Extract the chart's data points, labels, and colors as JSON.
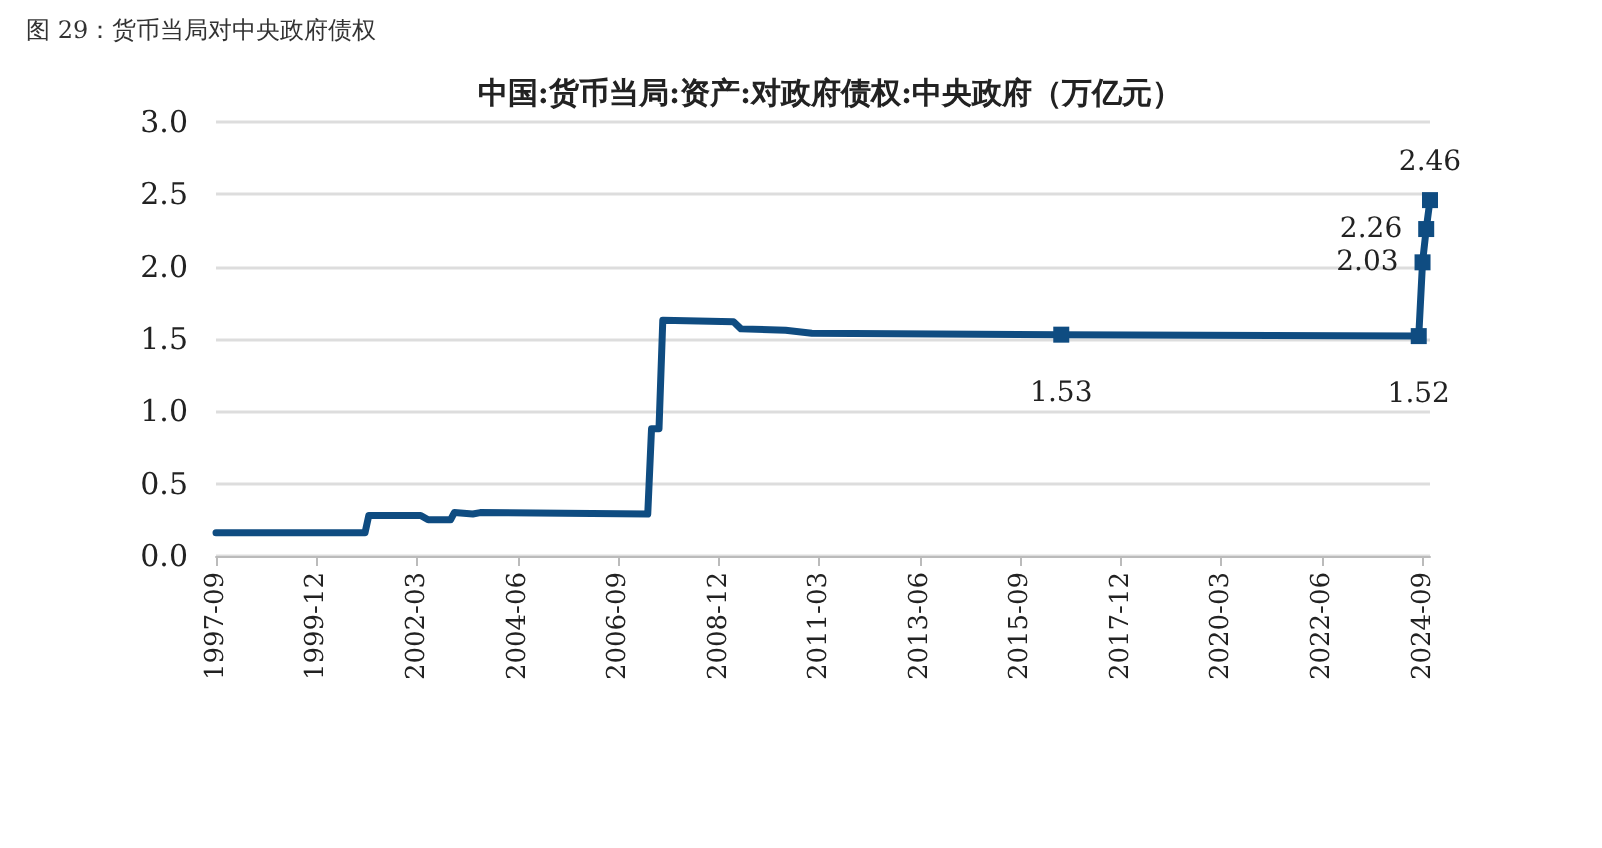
{
  "chart_data": {
    "type": "line",
    "title": "图 29：货币当局对中央政府债权",
    "subtitle": "中国:货币当局:资产:对政府债权:中央政府（万亿元）",
    "xlim": [
      "1997-09",
      "2024-11"
    ],
    "xticks": [
      "1997-09",
      "1999-12",
      "2002-03",
      "2004-06",
      "2006-09",
      "2008-12",
      "2011-03",
      "2013-06",
      "2015-09",
      "2017-12",
      "2020-03",
      "2022-06",
      "2024-09"
    ],
    "ylim": [
      0,
      3
    ],
    "yticks": [
      {
        "value": 0,
        "label": "0.0"
      },
      {
        "value": 0.5,
        "label": "0.5"
      },
      {
        "value": 1,
        "label": "1.0"
      },
      {
        "value": 1.5,
        "label": "1.5"
      },
      {
        "value": 2,
        "label": "2.0"
      },
      {
        "value": 2.5,
        "label": "2.5"
      },
      {
        "value": 3,
        "label": "3.0"
      }
    ],
    "grid": "y",
    "line_style": "solid",
    "series": [
      {
        "color": "#0f4c81",
        "x": [
          "1997-09",
          "2001-01",
          "2001-02",
          "2002-04",
          "2002-06",
          "2002-12",
          "2003-01",
          "2003-06",
          "2003-08",
          "2007-05",
          "2007-06",
          "2007-08",
          "2007-09",
          "2009-04",
          "2009-06",
          "2010-06",
          "2011-01",
          "2016-08",
          "2024-08",
          "2024-09",
          "2024-10",
          "2024-11"
        ],
        "values": [
          0.16,
          0.16,
          0.28,
          0.28,
          0.25,
          0.25,
          0.3,
          0.29,
          0.3,
          0.29,
          0.88,
          0.88,
          1.63,
          1.62,
          1.57,
          1.56,
          1.54,
          1.53,
          1.52,
          2.03,
          2.26,
          2.46
        ],
        "value_labels": [
          null,
          null,
          null,
          null,
          null,
          null,
          null,
          null,
          null,
          null,
          null,
          null,
          null,
          null,
          null,
          null,
          null,
          "1.53",
          "1.52",
          "2.03",
          "2.26",
          "2.46"
        ]
      }
    ]
  }
}
